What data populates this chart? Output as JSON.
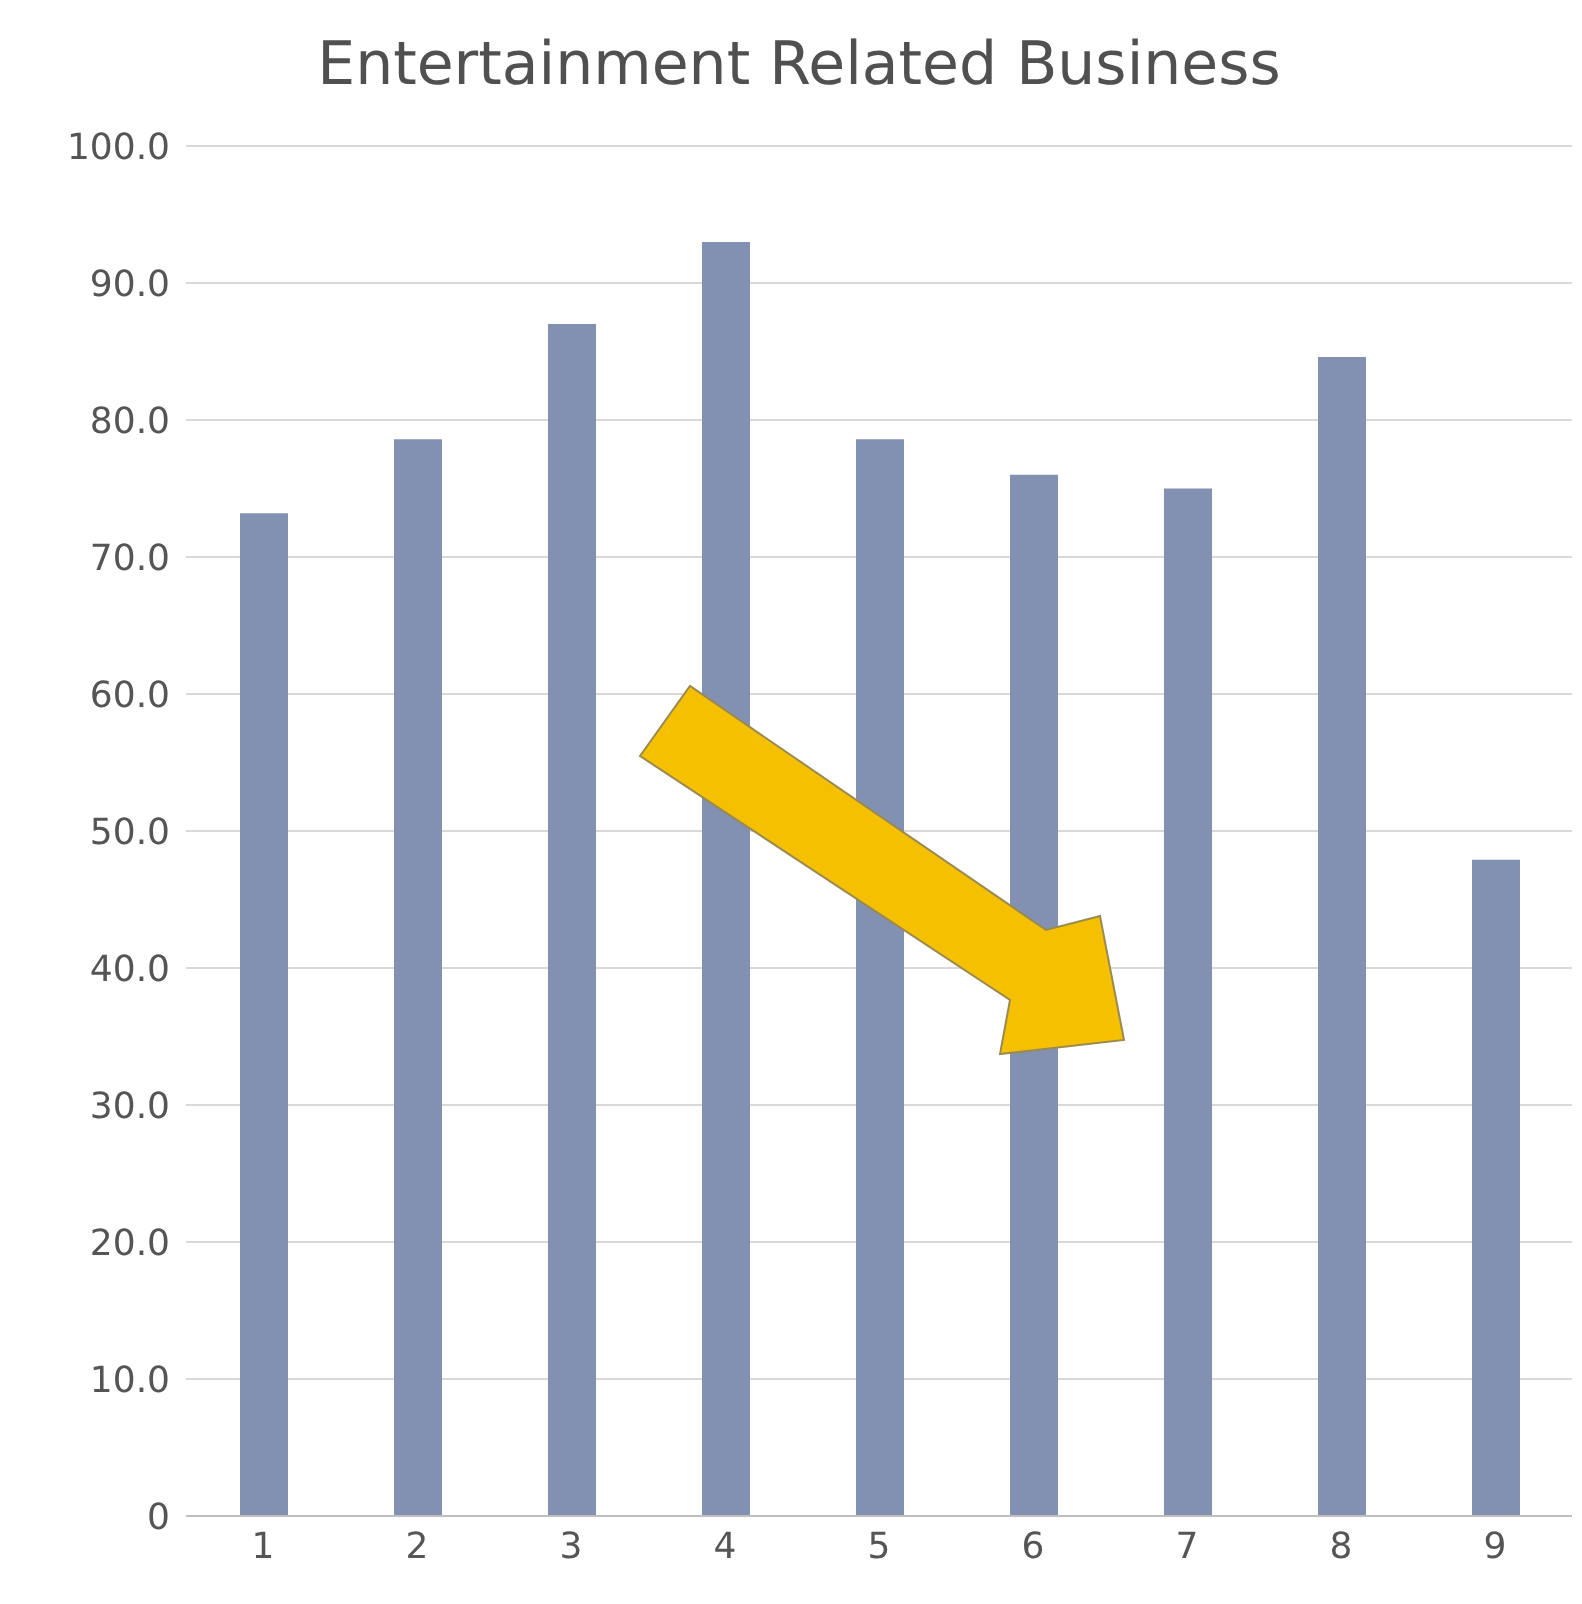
{
  "chart_data": {
    "type": "bar",
    "title": "Entertainment Related Business",
    "categories": [
      "1",
      "2",
      "3",
      "4",
      "5",
      "6",
      "7",
      "8",
      "9"
    ],
    "values": [
      73.2,
      78.6,
      87.0,
      93.0,
      78.6,
      76.0,
      75.0,
      84.6,
      47.9
    ],
    "color": "#8290b2",
    "ylim": [
      0,
      100
    ],
    "yticks": [
      {
        "value": 0,
        "label": "0"
      },
      {
        "value": 10,
        "label": "10.0"
      },
      {
        "value": 20,
        "label": "20.0"
      },
      {
        "value": 30,
        "label": "30.0"
      },
      {
        "value": 40,
        "label": "40.0"
      },
      {
        "value": 50,
        "label": "50.0"
      },
      {
        "value": 60,
        "label": "60.0"
      },
      {
        "value": 70,
        "label": "70.0"
      },
      {
        "value": 80,
        "label": "80.0"
      },
      {
        "value": 90,
        "label": "90.0"
      },
      {
        "value": 100,
        "label": "100.0"
      }
    ],
    "grid": "y"
  }
}
